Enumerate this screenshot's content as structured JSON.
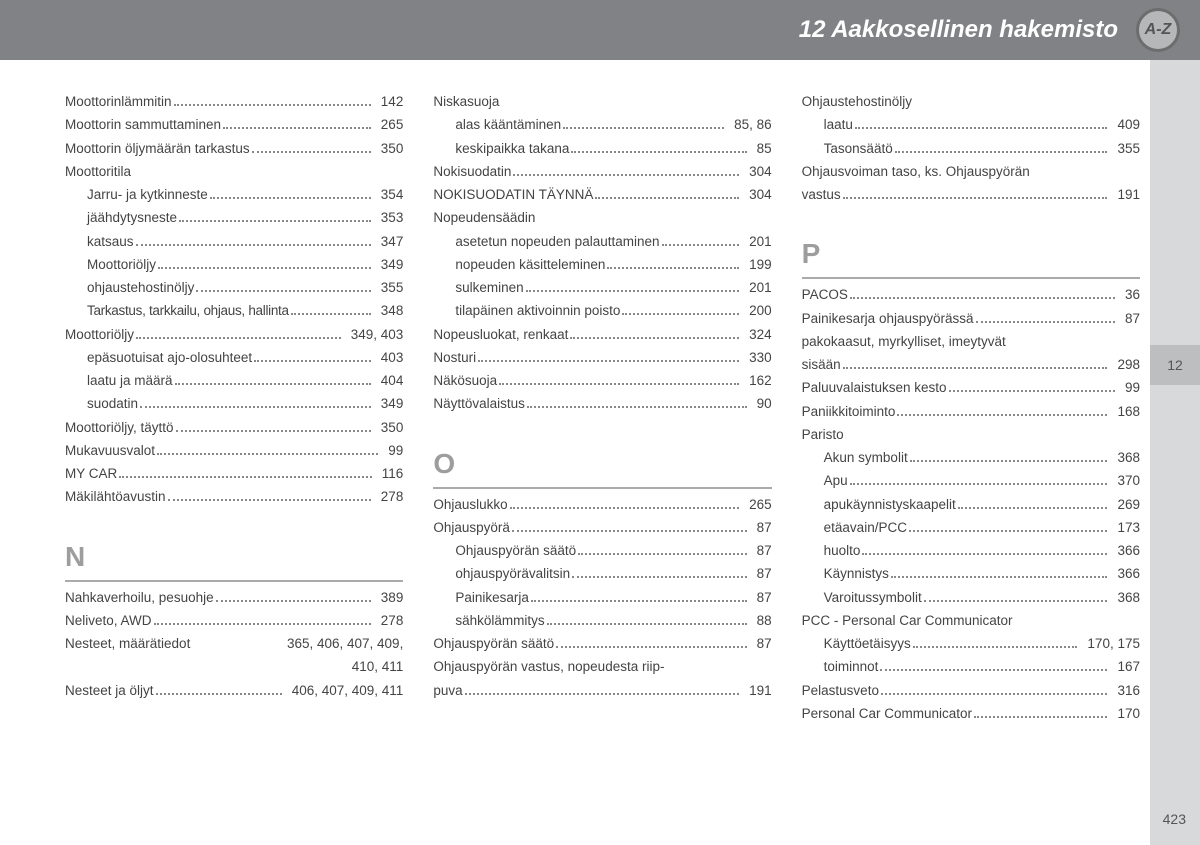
{
  "header": {
    "title": "12 Aakkosellinen hakemisto",
    "badge": "A-Z",
    "side_tab": "12",
    "page_number": "423"
  },
  "col1": {
    "items": [
      {
        "label": "Moottorinlämmitin",
        "pages": "142"
      },
      {
        "label": "Moottorin sammuttaminen",
        "pages": "265"
      },
      {
        "label": "Moottorin öljymäärän tarkastus",
        "pages": "350"
      },
      {
        "label": "Moottoritila",
        "nopage": true
      },
      {
        "label": "Jarru- ja kytkinneste",
        "pages": "354",
        "sub": true
      },
      {
        "label": "jäähdytysneste",
        "pages": "353",
        "sub": true
      },
      {
        "label": "katsaus",
        "pages": "347",
        "sub": true
      },
      {
        "label": "Moottoriöljy",
        "pages": "349",
        "sub": true
      },
      {
        "label": "ohjaustehostinöljy",
        "pages": "355",
        "sub": true
      },
      {
        "label": "Tarkastus, tarkkailu, ohjaus, hallinta",
        "pages": "348",
        "sub": true,
        "tight": true
      },
      {
        "label": "Moottoriöljy",
        "pages": "349, 403"
      },
      {
        "label": "epäsuotuisat ajo-olosuhteet",
        "pages": "403",
        "sub": true
      },
      {
        "label": "laatu ja määrä",
        "pages": "404",
        "sub": true
      },
      {
        "label": "suodatin",
        "pages": "349",
        "sub": true
      },
      {
        "label": "Moottoriöljy, täyttö",
        "pages": "350"
      },
      {
        "label": "Mukavuusvalot",
        "pages": "99"
      },
      {
        "label": "MY CAR",
        "pages": "116"
      },
      {
        "label": "Mäkilähtöavustin",
        "pages": "278"
      }
    ],
    "section_n": "N",
    "items_n": [
      {
        "label": "Nahkaverhoilu, pesuohje",
        "pages": "389"
      },
      {
        "label": "Neliveto, AWD",
        "pages": "278"
      },
      {
        "label": "Nesteet, määrätiedot",
        "pages": "365, 406, 407, 409,",
        "nodots": true
      },
      {
        "label": "",
        "pages": "410, 411",
        "rightonly": true
      },
      {
        "label": "Nesteet ja öljyt",
        "pages": "406, 407, 409, 411"
      }
    ]
  },
  "col2": {
    "items": [
      {
        "label": "Niskasuoja",
        "nopage": true
      },
      {
        "label": "alas kääntäminen",
        "pages": "85, 86",
        "sub": true
      },
      {
        "label": "keskipaikka takana",
        "pages": "85",
        "sub": true
      },
      {
        "label": "Nokisuodatin",
        "pages": "304"
      },
      {
        "label": "NOKISUODATIN TÄYNNÄ",
        "pages": "304"
      },
      {
        "label": "Nopeudensäädin",
        "nopage": true
      },
      {
        "label": "asetetun nopeuden palauttaminen",
        "pages": "201",
        "sub": true
      },
      {
        "label": "nopeuden käsitteleminen",
        "pages": "199",
        "sub": true
      },
      {
        "label": "sulkeminen",
        "pages": "201",
        "sub": true
      },
      {
        "label": "tilapäinen aktivoinnin poisto",
        "pages": "200",
        "sub": true
      },
      {
        "label": "Nopeusluokat, renkaat",
        "pages": "324"
      },
      {
        "label": "Nosturi",
        "pages": "330"
      },
      {
        "label": "Näkösuoja",
        "pages": "162"
      },
      {
        "label": "Näyttövalaistus",
        "pages": "90"
      }
    ],
    "section_o": "O",
    "items_o": [
      {
        "label": "Ohjauslukko",
        "pages": "265"
      },
      {
        "label": "Ohjauspyörä",
        "pages": "87"
      },
      {
        "label": "Ohjauspyörän säätö",
        "pages": "87",
        "sub": true
      },
      {
        "label": "ohjauspyörävalitsin",
        "pages": "87",
        "sub": true
      },
      {
        "label": "Painikesarja",
        "pages": "87",
        "sub": true
      },
      {
        "label": "sähkölämmitys",
        "pages": "88",
        "sub": true
      },
      {
        "label": "Ohjauspyörän säätö",
        "pages": "87"
      },
      {
        "label": "Ohjauspyörän vastus, nopeudesta riip-",
        "nopage": true,
        "wrap": true
      },
      {
        "label": "puva",
        "pages": "191"
      }
    ]
  },
  "col3": {
    "items": [
      {
        "label": "Ohjaustehostinöljy",
        "nopage": true
      },
      {
        "label": "laatu",
        "pages": "409",
        "sub": true
      },
      {
        "label": "Tasonsäätö",
        "pages": "355",
        "sub": true
      },
      {
        "label": "Ohjausvoiman taso, ks. Ohjauspyörän",
        "nopage": true,
        "wrap": true
      },
      {
        "label": "vastus",
        "pages": "191"
      }
    ],
    "section_p": "P",
    "items_p": [
      {
        "label": "PACOS",
        "pages": "36"
      },
      {
        "label": "Painikesarja ohjauspyörässä",
        "pages": "87"
      },
      {
        "label": "pakokaasut, myrkylliset, imeytyvät",
        "nopage": true,
        "wrap": true
      },
      {
        "label": "sisään",
        "pages": "298"
      },
      {
        "label": "Paluuvalaistuksen kesto",
        "pages": "99"
      },
      {
        "label": "Paniikkitoiminto",
        "pages": "168"
      },
      {
        "label": "Paristo",
        "nopage": true
      },
      {
        "label": "Akun symbolit",
        "pages": "368",
        "sub": true
      },
      {
        "label": "Apu",
        "pages": "370",
        "sub": true
      },
      {
        "label": "apukäynnistyskaapelit",
        "pages": "269",
        "sub": true
      },
      {
        "label": "etäavain/PCC",
        "pages": "173",
        "sub": true
      },
      {
        "label": "huolto",
        "pages": "366",
        "sub": true
      },
      {
        "label": "Käynnistys",
        "pages": "366",
        "sub": true
      },
      {
        "label": "Varoitussymbolit",
        "pages": "368",
        "sub": true
      },
      {
        "label": "PCC - Personal Car Communicator",
        "nopage": true
      },
      {
        "label": "Käyttöetäisyys",
        "pages": "170, 175",
        "sub": true
      },
      {
        "label": "toiminnot",
        "pages": "167",
        "sub": true
      },
      {
        "label": "Pelastusveto",
        "pages": "316"
      },
      {
        "label": "Personal Car Communicator",
        "pages": "170"
      }
    ]
  }
}
